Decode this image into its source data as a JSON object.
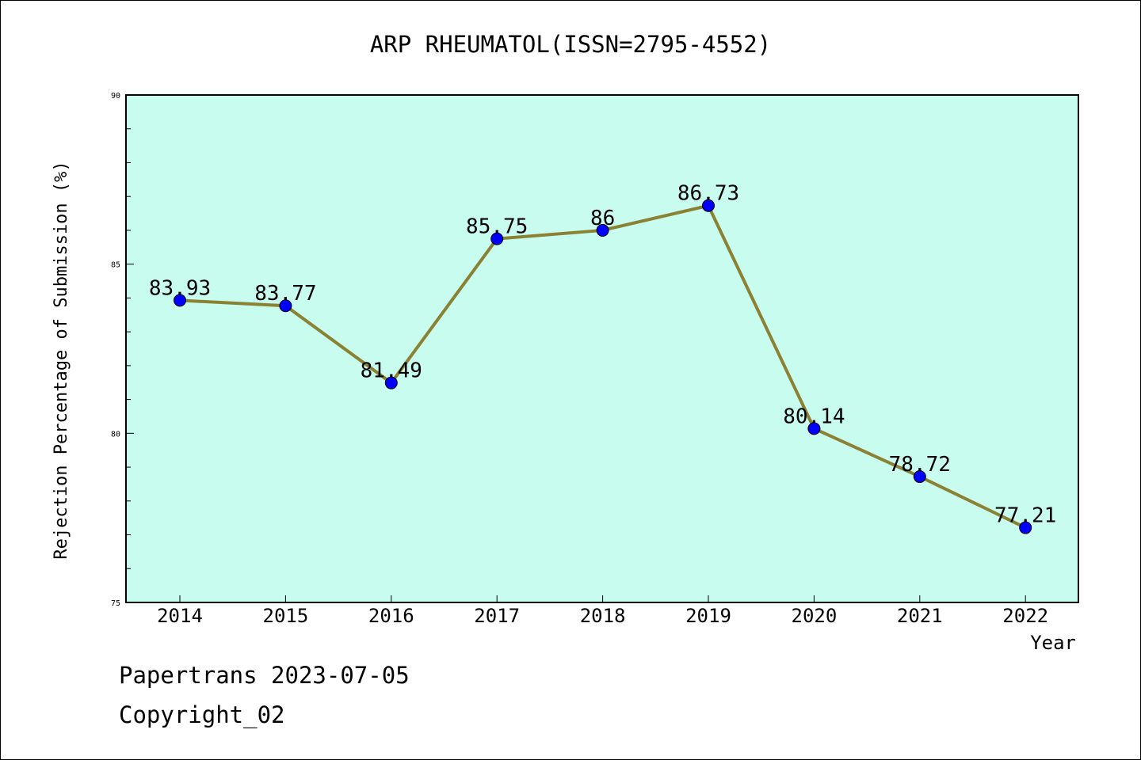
{
  "chart_data": {
    "type": "line",
    "title": "ARP RHEUMATOL(ISSN=2795-4552)",
    "xlabel": "Year",
    "ylabel": "Rejection Percentage of Submission (%)",
    "categories": [
      "2014",
      "2015",
      "2016",
      "2017",
      "2018",
      "2019",
      "2020",
      "2021",
      "2022"
    ],
    "values": [
      83.93,
      83.77,
      81.49,
      85.75,
      86,
      86.73,
      80.14,
      78.72,
      77.21
    ],
    "data_labels": [
      "83.93",
      "83.77",
      "81.49",
      "85.75",
      "86",
      "86.73",
      "80.14",
      "78.72",
      "77.21"
    ],
    "ylim": [
      75,
      90
    ],
    "yticks": [
      "75",
      "80",
      "85",
      "90"
    ],
    "grid": false,
    "colors": {
      "plot_background": "#c7fcee",
      "line": "#8b8133",
      "marker": "#0000ff"
    }
  },
  "footer": {
    "line1": "Papertrans 2023-07-05",
    "line2": "Copyright_02"
  }
}
